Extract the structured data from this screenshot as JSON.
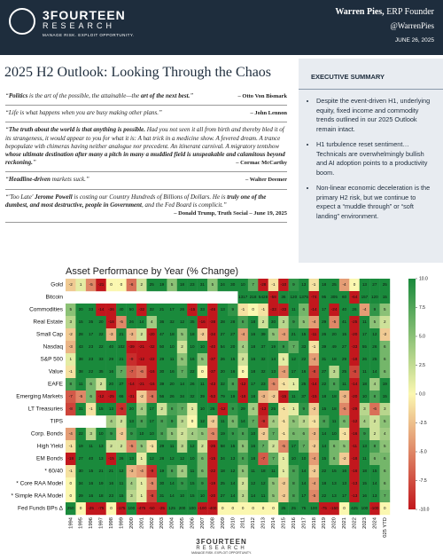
{
  "header": {
    "brand": "3FOURTEEN",
    "sub": "RESEARCH",
    "tagline": "MANAGE RISK. EXPLOIT OPPORTUNITY.",
    "author_name": "Warren Pies,",
    "author_role": "ERP Founder",
    "handle": "@WarrenPies",
    "date": "JUNE 26, 2025"
  },
  "title": "2025 H2 Outlook: Looking Through the Chaos",
  "quotes": [
    {
      "parts": [
        {
          "text": "“"
        },
        {
          "text": "Politics",
          "bold": true
        },
        {
          "text": " is the art of the possible, the attainable—the "
        },
        {
          "text": "art of the next best.",
          "bold": true
        },
        {
          "text": "”"
        }
      ],
      "author": "– Otto Von Bismark"
    },
    {
      "parts": [
        {
          "text": "“Life is what happens when you are busy making other plans.”"
        }
      ],
      "author": "– John Lennon"
    },
    {
      "parts": [
        {
          "text": "“"
        },
        {
          "text": "The truth about the world is that anything is possible.",
          "bold": true
        },
        {
          "text": " Had you not seen it all from birth and thereby bled it of its strangeness, it would appear to you for what it is: A hat trick in a medicine show. A fevered dream. A trance bepopulate with chimeras having neither analogue nor precedent. An itinerant carnival. A migratory tentshow "
        },
        {
          "text": "whose ultimate destination after many a pitch in many a muddied field is unspeakable and calamitous beyond reckoning.",
          "bold": true
        },
        {
          "text": "”"
        }
      ],
      "author": "– Cormac McCarthy"
    },
    {
      "parts": [
        {
          "text": "“"
        },
        {
          "text": "Headline-driven",
          "bold": true
        },
        {
          "text": " markets suck.”"
        }
      ],
      "author": "– Walter Deemer"
    },
    {
      "parts": [
        {
          "text": "“'Too Late' "
        },
        {
          "text": "Jerome Powell",
          "bold": true
        },
        {
          "text": " is costing our Country Hundreds of Billions of Dollars. He is "
        },
        {
          "text": "truly one of the dumbest, and most destructive, people in Government",
          "bold": true
        },
        {
          "text": ", and the Fed Board is complicit.”"
        }
      ],
      "author": "– Donald Trump, Truth Social – June 19, 2025"
    }
  ],
  "summary": {
    "heading": "EXECUTIVE SUMMARY",
    "bullets": [
      "Despite the event-driven H1, underlying equity, fixed income and commodity trends outlined in our 2025 Outlook remain intact.",
      "H1 turbulence reset sentiment… Technicals are overwhelmingly bullish and AI adoption points to a productivity boom.",
      "Non-linear economic deceleration is the primary H2 risk, but we continue to expect a “muddle through” or “soft landing” environment."
    ]
  },
  "chart_data": {
    "type": "heatmap",
    "title": "Asset Performance by Year (% Change)",
    "columns": [
      "1994",
      "1995",
      "1996",
      "1997",
      "1998",
      "1999",
      "2000",
      "2001",
      "2002",
      "2003",
      "2004",
      "2005",
      "2006",
      "2007",
      "2008",
      "2009",
      "2010",
      "2011",
      "2012",
      "2013",
      "2014",
      "2015",
      "2016",
      "2017",
      "2018",
      "2019",
      "2020",
      "2021",
      "2022",
      "2023",
      "2024",
      "2025 YTD"
    ],
    "rows": [
      "Gold",
      "Bitcoin",
      "Commodities",
      "Real Estate",
      "Small Cap",
      "Nasdaq",
      "S&P 500",
      "Value",
      "EAFE",
      "Emerging Markets",
      "LT Treasuries",
      "TIPS",
      "Corp. Bonds",
      "High Yield",
      "EM Bonds",
      "* 60/40",
      "* Core RAA Model",
      "* Simple RAA Model",
      "Fed Funds BPs Δ"
    ],
    "values": [
      [
        -2,
        1,
        -5,
        -21,
        0,
        0,
        -6,
        2,
        25,
        19,
        5,
        18,
        23,
        31,
        5,
        24,
        30,
        10,
        7,
        -28,
        -1,
        -10,
        9,
        13,
        -1,
        18,
        25,
        -4,
        0,
        13,
        27,
        25
      ],
      [
        null,
        null,
        null,
        null,
        null,
        null,
        null,
        null,
        null,
        null,
        null,
        null,
        null,
        null,
        null,
        null,
        null,
        1317,
        218,
        5428,
        -58,
        36,
        120,
        1375,
        -74,
        95,
        305,
        60,
        -64,
        157,
        120,
        15
      ],
      [
        5,
        20,
        33,
        -14,
        -36,
        40,
        50,
        -32,
        32,
        21,
        17,
        26,
        -15,
        33,
        -46,
        13,
        9,
        -1,
        0,
        -1,
        -33,
        -33,
        11,
        6,
        -14,
        17,
        -24,
        40,
        26,
        -4,
        9,
        5
      ],
      [
        3,
        15,
        35,
        20,
        -18,
        -5,
        26,
        14,
        4,
        36,
        32,
        12,
        35,
        -16,
        -38,
        28,
        28,
        8,
        18,
        2,
        30,
        3,
        9,
        5,
        -4,
        29,
        -5,
        41,
        -25,
        11,
        5,
        2
      ],
      [
        -2,
        28,
        17,
        22,
        -3,
        21,
        -3,
        2,
        -20,
        47,
        18,
        5,
        18,
        -2,
        -34,
        27,
        27,
        -4,
        16,
        39,
        5,
        -4,
        21,
        15,
        -11,
        26,
        20,
        15,
        -20,
        17,
        12,
        -2
      ],
      [
        -3,
        43,
        23,
        22,
        40,
        102,
        -39,
        -21,
        -32,
        50,
        10,
        2,
        10,
        10,
        -40,
        54,
        20,
        4,
        18,
        37,
        19,
        9,
        7,
        33,
        -1,
        39,
        49,
        27,
        -33,
        55,
        26,
        6
      ],
      [
        1,
        38,
        23,
        33,
        29,
        21,
        -9,
        -12,
        -22,
        29,
        11,
        5,
        16,
        5,
        -37,
        26,
        15,
        2,
        16,
        32,
        14,
        1,
        12,
        22,
        -4,
        31,
        18,
        29,
        -18,
        26,
        25,
        6
      ],
      [
        -1,
        38,
        22,
        35,
        16,
        7,
        -7,
        -6,
        -16,
        30,
        16,
        7,
        22,
        0,
        -37,
        20,
        16,
        0,
        18,
        32,
        13,
        -4,
        17,
        16,
        -8,
        27,
        3,
        25,
        -8,
        11,
        14,
        6
      ],
      [
        8,
        11,
        6,
        2,
        20,
        27,
        -14,
        -21,
        -16,
        39,
        20,
        14,
        26,
        11,
        -43,
        32,
        8,
        -12,
        17,
        23,
        -5,
        -1,
        1,
        25,
        -14,
        22,
        8,
        11,
        -14,
        18,
        4,
        19
      ],
      [
        -7,
        -5,
        6,
        -12,
        -25,
        66,
        -31,
        -2,
        -6,
        56,
        26,
        34,
        32,
        39,
        -53,
        79,
        19,
        -18,
        18,
        -3,
        -2,
        -15,
        11,
        37,
        -15,
        18,
        18,
        -3,
        -20,
        10,
        8,
        15
      ],
      [
        -8,
        31,
        -1,
        15,
        13,
        -9,
        20,
        4,
        17,
        2,
        8,
        7,
        1,
        10,
        26,
        -12,
        9,
        29,
        4,
        -13,
        25,
        -1,
        1,
        9,
        -2,
        15,
        18,
        -5,
        -29,
        3,
        -6,
        3
      ],
      [
        null,
        null,
        null,
        null,
        4,
        2,
        13,
        8,
        17,
        8,
        9,
        3,
        0,
        12,
        -2,
        11,
        6,
        14,
        7,
        -9,
        4,
        -1,
        5,
        3,
        -1,
        8,
        11,
        6,
        -12,
        4,
        2,
        5
      ],
      [
        -4,
        22,
        3,
        10,
        9,
        -2,
        9,
        10,
        10,
        8,
        5,
        2,
        4,
        5,
        -5,
        19,
        9,
        8,
        10,
        -2,
        7,
        -1,
        6,
        6,
        -3,
        14,
        10,
        -1,
        -16,
        9,
        2,
        4
      ],
      [
        -1,
        19,
        11,
        13,
        2,
        2,
        -5,
        5,
        -1,
        29,
        11,
        3,
        12,
        2,
        -26,
        58,
        15,
        5,
        16,
        7,
        2,
        -5,
        17,
        7,
        -2,
        14,
        6,
        5,
        -11,
        13,
        8,
        5
      ],
      [
        -18,
        27,
        40,
        13,
        -15,
        26,
        13,
        1,
        12,
        28,
        12,
        12,
        10,
        6,
        -15,
        34,
        13,
        8,
        18,
        -7,
        7,
        1,
        10,
        10,
        -4,
        15,
        6,
        -2,
        -18,
        11,
        6,
        6
      ],
      [
        -1,
        30,
        15,
        21,
        21,
        12,
        -3,
        -4,
        -9,
        19,
        8,
        4,
        11,
        6,
        -22,
        18,
        12,
        5,
        11,
        18,
        11,
        1,
        8,
        14,
        -2,
        22,
        15,
        16,
        -16,
        18,
        15,
        6
      ],
      [
        0,
        34,
        16,
        19,
        16,
        11,
        4,
        1,
        -5,
        30,
        14,
        9,
        15,
        9,
        -19,
        25,
        14,
        2,
        12,
        12,
        5,
        -2,
        8,
        14,
        -4,
        18,
        13,
        13,
        -13,
        15,
        14,
        6
      ],
      [
        0,
        29,
        16,
        18,
        23,
        15,
        3,
        1,
        -8,
        31,
        14,
        10,
        15,
        10,
        -20,
        27,
        14,
        3,
        14,
        11,
        5,
        -2,
        8,
        17,
        -5,
        22,
        13,
        17,
        -13,
        16,
        13,
        7
      ],
      [
        250,
        0,
        -25,
        -75,
        0,
        -175,
        100,
        -475,
        -50,
        -25,
        125,
        200,
        100,
        -100,
        -400,
        0,
        0,
        0,
        0,
        0,
        0,
        25,
        25,
        75,
        100,
        -75,
        -150,
        0,
        425,
        100,
        -100,
        0
      ]
    ],
    "clim": [
      -10,
      10
    ],
    "colorscale": [
      "#c2171d",
      "#fbf7b0",
      "#1a8a3c"
    ],
    "cticks": [
      {
        "value": -10,
        "label": "-10.0"
      },
      {
        "value": -7.5,
        "label": "-7.5"
      },
      {
        "value": -5,
        "label": "-5.0"
      },
      {
        "value": -2.5,
        "label": "-2.5"
      },
      {
        "value": 0,
        "label": "0.0"
      },
      {
        "value": 2.5,
        "label": "2.5"
      },
      {
        "value": 5,
        "label": "5.0"
      },
      {
        "value": 7.5,
        "label": "7.5"
      },
      {
        "value": 10,
        "label": "10.0"
      }
    ]
  },
  "footer": {
    "brand": "3FOURTEEN",
    "sub": "RESEARCH",
    "tagline": "MANAGE RISK. EXPLOIT OPPORTUNITY."
  }
}
